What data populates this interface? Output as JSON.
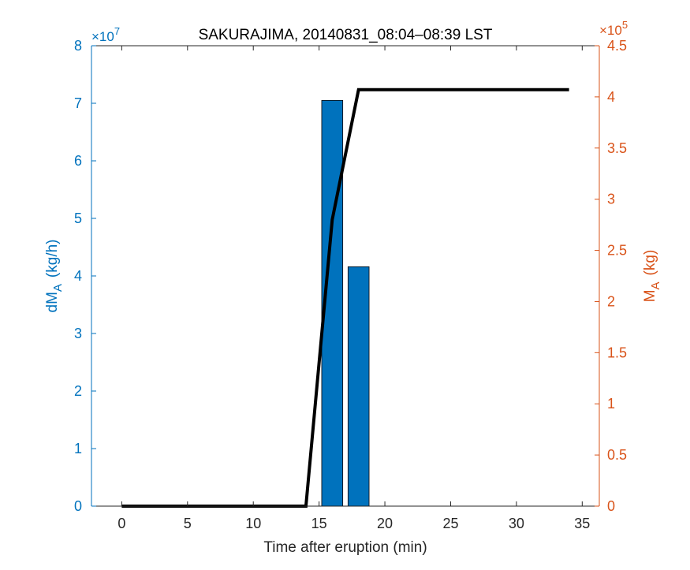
{
  "chart_data": {
    "type": "bar",
    "title": "SAKURAJIMA, 20140831_08:04–08:39 LST",
    "xlabel": "Time after eruption (min)",
    "xlim": [
      -2.3,
      36.3
    ],
    "xticks": [
      0,
      5,
      10,
      15,
      20,
      25,
      30,
      35
    ],
    "left_axis": {
      "label_main": "dM",
      "label_sub": "A",
      "label_unit": "(kg/h)",
      "ylim": [
        0,
        8
      ],
      "ticks": [
        0,
        1,
        2,
        3,
        4,
        5,
        6,
        7,
        8
      ],
      "exponent_base": "×10",
      "exponent_power": "7",
      "color": "#0072BD"
    },
    "right_axis": {
      "label_main": "M",
      "label_sub": "A",
      "label_unit": "(kg)",
      "ylim": [
        0,
        4.5
      ],
      "ticks": [
        "0",
        "0.5",
        "1",
        "1.5",
        "2",
        "2.5",
        "3",
        "3.5",
        "4",
        "4.5"
      ],
      "exponent_base": "×10",
      "exponent_power": "5",
      "color": "#D95319"
    },
    "bars": {
      "axis": "left",
      "color": "#0072BD",
      "x": [
        16,
        18
      ],
      "values": [
        7.05,
        4.16
      ],
      "width": 1.6
    },
    "line": {
      "axis": "right",
      "color": "#000000",
      "x": [
        0,
        14,
        16,
        18,
        34
      ],
      "values": [
        0,
        0,
        2.8,
        4.07,
        4.07
      ]
    },
    "grid": false,
    "legend": "none"
  }
}
